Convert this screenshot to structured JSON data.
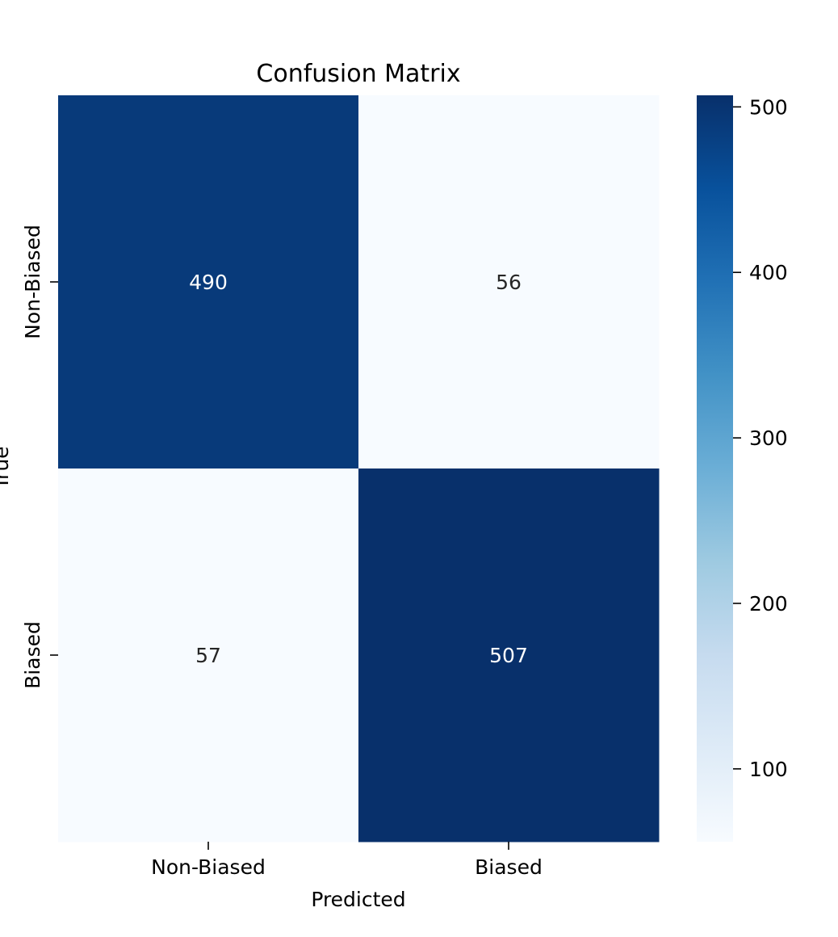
{
  "chart_data": {
    "type": "heatmap",
    "title": "Confusion Matrix",
    "xlabel": "Predicted",
    "ylabel": "True",
    "x_categories": [
      "Non-Biased",
      "Biased"
    ],
    "y_categories": [
      "Non-Biased",
      "Biased"
    ],
    "values": [
      [
        490,
        56
      ],
      [
        57,
        507
      ]
    ],
    "colormap": "Blues",
    "colorbar": {
      "min": 56,
      "max": 507,
      "ticks": [
        100,
        200,
        300,
        400,
        500
      ]
    },
    "colors": {
      "low": "#f7fbff",
      "high": "#08306b",
      "annotation_dark": "#262626",
      "annotation_light": "#ffffff"
    }
  }
}
